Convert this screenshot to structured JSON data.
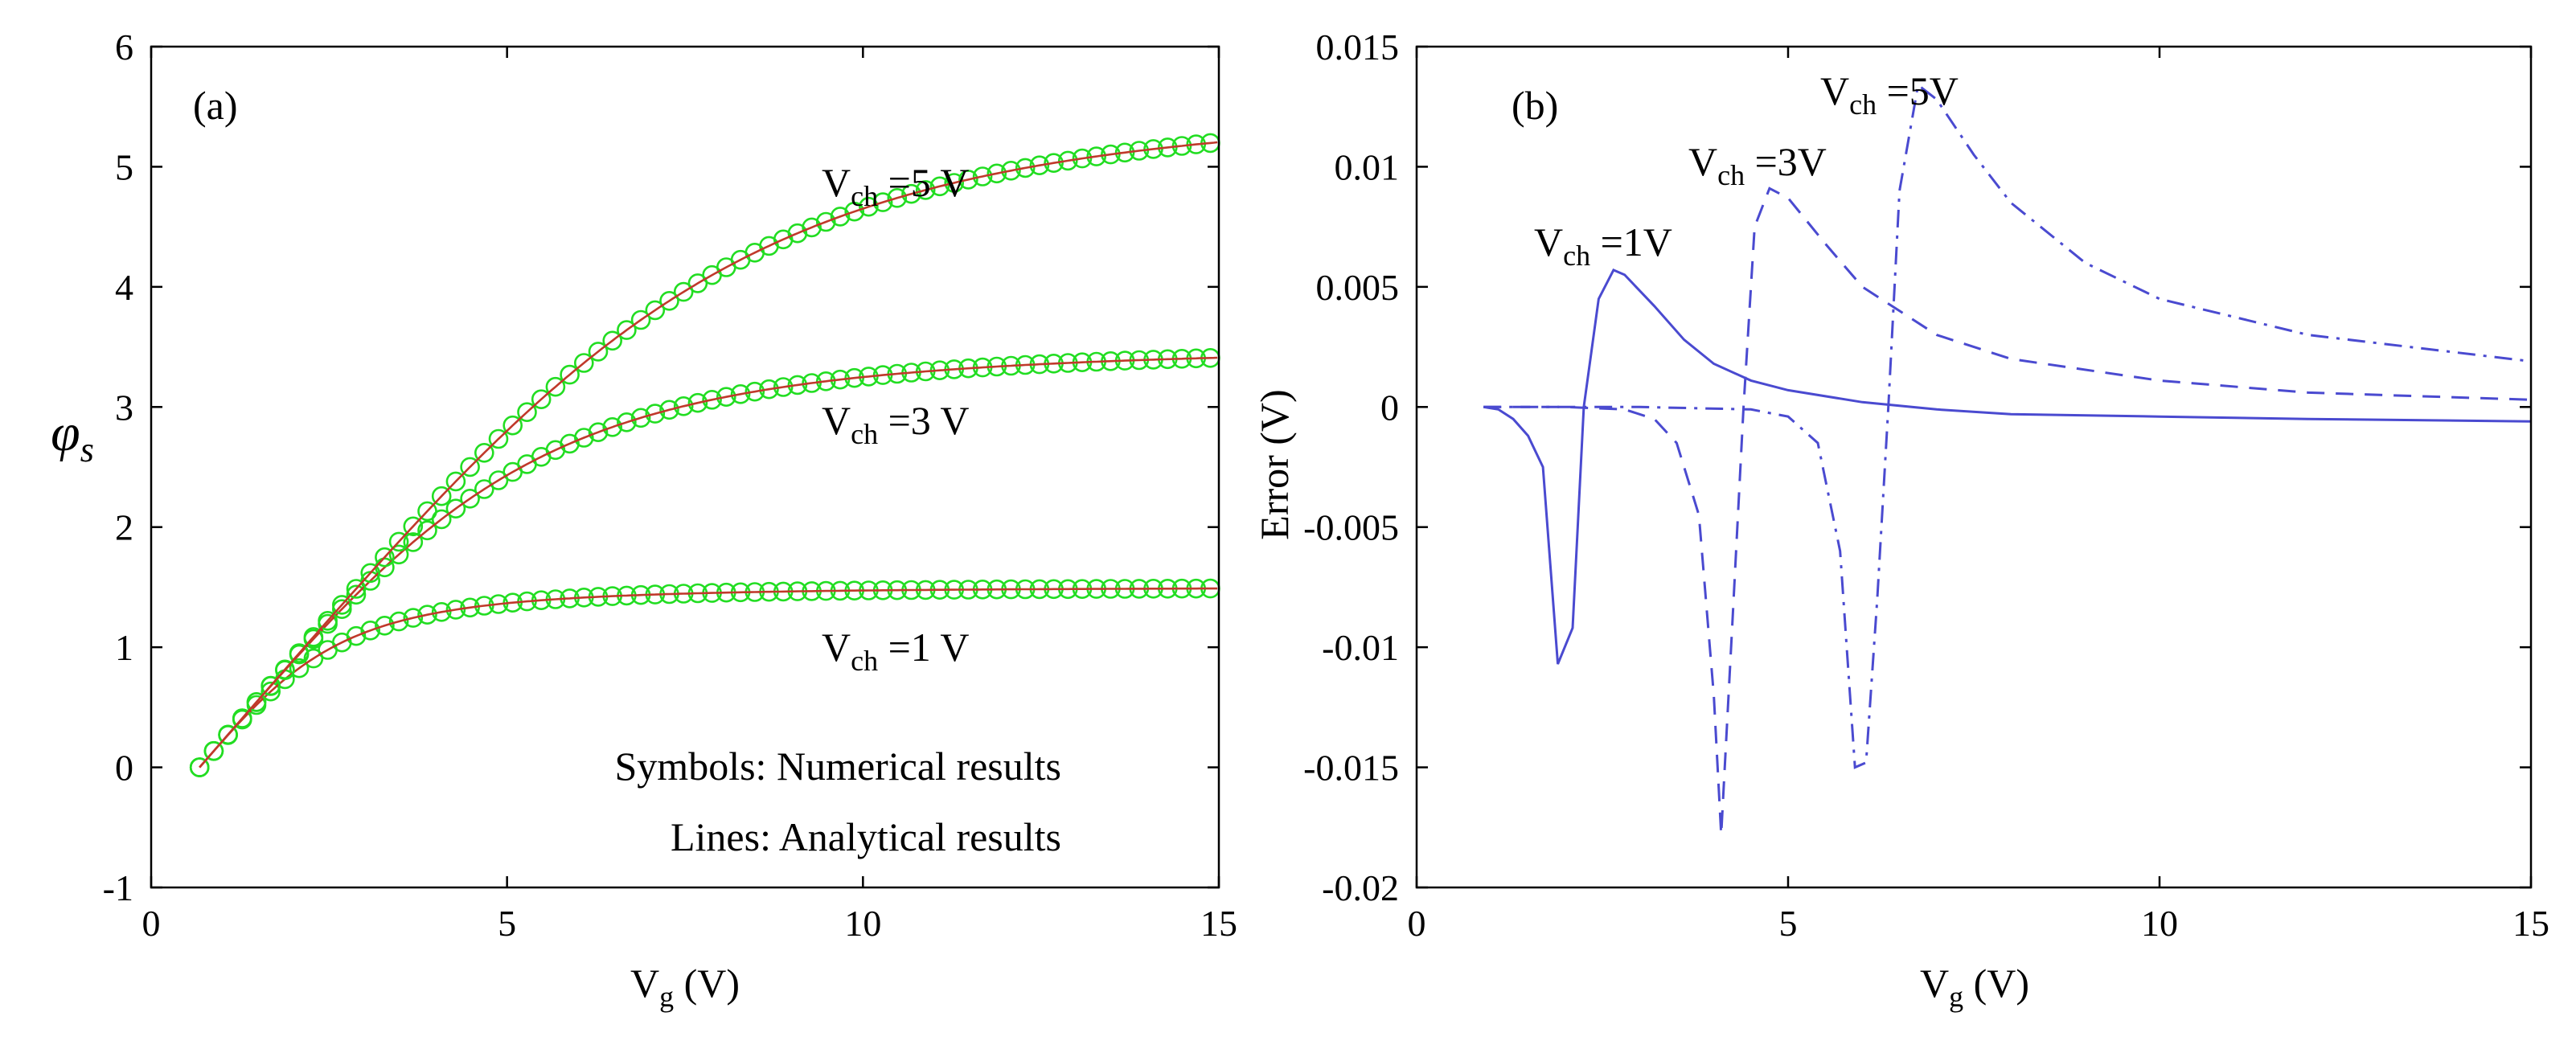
{
  "chart_data": [
    {
      "panel": "(a)",
      "type": "line",
      "xlabel": {
        "main": "V",
        "sub": "g",
        "rest": " (V)"
      },
      "ylabel": "φs",
      "xlim": [
        0,
        15
      ],
      "ylim": [
        -1,
        6
      ],
      "xticks": [
        0,
        5,
        10,
        15
      ],
      "yticks": [
        -1,
        0,
        1,
        2,
        3,
        4,
        5,
        6
      ],
      "legend_text": [
        "Symbols: Numerical results",
        "Lines: Analytical results"
      ],
      "series": [
        {
          "name": "Vch=1 V",
          "label": {
            "main": "V",
            "sub": "ch",
            "rest": " =1 V"
          },
          "line_color": "#c0392b",
          "marker_color": "#22dd22",
          "sat": 1.5,
          "slope": 0.68,
          "x0": 0.68,
          "k": 2.2
        },
        {
          "name": "Vch=3 V",
          "label": {
            "main": "V",
            "sub": "ch",
            "rest": " =3 V"
          },
          "line_color": "#c0392b",
          "marker_color": "#22dd22",
          "sat": 3.5,
          "slope": 0.68,
          "x0": 0.68,
          "k": 2.6
        },
        {
          "name": "Vch=5 V",
          "label": {
            "main": "V",
            "sub": "ch",
            "rest": " =5 V"
          },
          "line_color": "#c0392b",
          "marker_color": "#22dd22",
          "sat": 5.5,
          "slope": 0.68,
          "x0": 0.68,
          "k": 3.0
        }
      ]
    },
    {
      "panel": "(b)",
      "type": "line",
      "xlabel": {
        "main": "V",
        "sub": "g",
        "rest": " (V)"
      },
      "ylabel": "Error (V)",
      "xlim": [
        0,
        15
      ],
      "ylim": [
        -0.02,
        0.015
      ],
      "xticks": [
        0,
        5,
        10,
        15
      ],
      "xtick_labels": [
        "0",
        "5",
        "10",
        "15"
      ],
      "yticks": [
        -0.02,
        -0.015,
        -0.01,
        -0.005,
        0,
        0.005,
        0.01,
        0.015
      ],
      "ytick_labels": [
        "-0.02",
        "-0.015",
        "-0.01",
        "-0.005",
        "0",
        "0.005",
        "0.01",
        "0.015"
      ],
      "series": [
        {
          "name": "Vch=1V",
          "style": "solid",
          "color": "#4a4ad0",
          "label": {
            "main": "V",
            "sub": "ch",
            "rest": " =1V"
          },
          "points": [
            [
              0.9,
              0
            ],
            [
              1.1,
              -0.0001
            ],
            [
              1.3,
              -0.0005
            ],
            [
              1.5,
              -0.0012
            ],
            [
              1.7,
              -0.0025
            ],
            [
              1.9,
              -0.0107
            ],
            [
              2.1,
              -0.0092
            ],
            [
              2.25,
              0.0
            ],
            [
              2.45,
              0.0045
            ],
            [
              2.65,
              0.0057
            ],
            [
              2.8,
              0.0055
            ],
            [
              3.2,
              0.0042
            ],
            [
              3.6,
              0.0028
            ],
            [
              4.0,
              0.0018
            ],
            [
              4.5,
              0.0011
            ],
            [
              5.0,
              0.0007
            ],
            [
              6,
              0.0002
            ],
            [
              7,
              -0.0001
            ],
            [
              8,
              -0.0003
            ],
            [
              10,
              -0.0004
            ],
            [
              12,
              -0.0005
            ],
            [
              15,
              -0.0006
            ]
          ]
        },
        {
          "name": "Vch=3V",
          "style": "dashed",
          "color": "#4a4ad0",
          "label": {
            "main": "V",
            "sub": "ch",
            "rest": " =3V"
          },
          "points": [
            [
              0.9,
              0
            ],
            [
              2.0,
              0
            ],
            [
              2.8,
              -0.0001
            ],
            [
              3.2,
              -0.0005
            ],
            [
              3.5,
              -0.0015
            ],
            [
              3.8,
              -0.0045
            ],
            [
              4.0,
              -0.012
            ],
            [
              4.1,
              -0.0178
            ],
            [
              4.25,
              -0.009
            ],
            [
              4.4,
              0.0
            ],
            [
              4.55,
              0.0075
            ],
            [
              4.75,
              0.0091
            ],
            [
              5.0,
              0.0087
            ],
            [
              5.5,
              0.0068
            ],
            [
              6,
              0.005
            ],
            [
              7,
              0.003
            ],
            [
              8,
              0.002
            ],
            [
              10,
              0.0011
            ],
            [
              12,
              0.0006
            ],
            [
              15,
              0.0003
            ]
          ]
        },
        {
          "name": "Vch=5V",
          "style": "dashdot",
          "color": "#4a4ad0",
          "label": {
            "main": "V",
            "sub": "ch",
            "rest": " =5V"
          },
          "points": [
            [
              0.9,
              0
            ],
            [
              3.0,
              0
            ],
            [
              4.5,
              -0.0001
            ],
            [
              5.0,
              -0.0004
            ],
            [
              5.4,
              -0.0015
            ],
            [
              5.7,
              -0.006
            ],
            [
              5.9,
              -0.015
            ],
            [
              6.05,
              -0.0148
            ],
            [
              6.2,
              -0.008
            ],
            [
              6.35,
              0.0
            ],
            [
              6.5,
              0.009
            ],
            [
              6.75,
              0.0134
            ],
            [
              7.0,
              0.0128
            ],
            [
              7.5,
              0.0105
            ],
            [
              8,
              0.0085
            ],
            [
              9,
              0.006
            ],
            [
              10,
              0.0045
            ],
            [
              12,
              0.003
            ],
            [
              15,
              0.0019
            ]
          ]
        }
      ]
    }
  ]
}
